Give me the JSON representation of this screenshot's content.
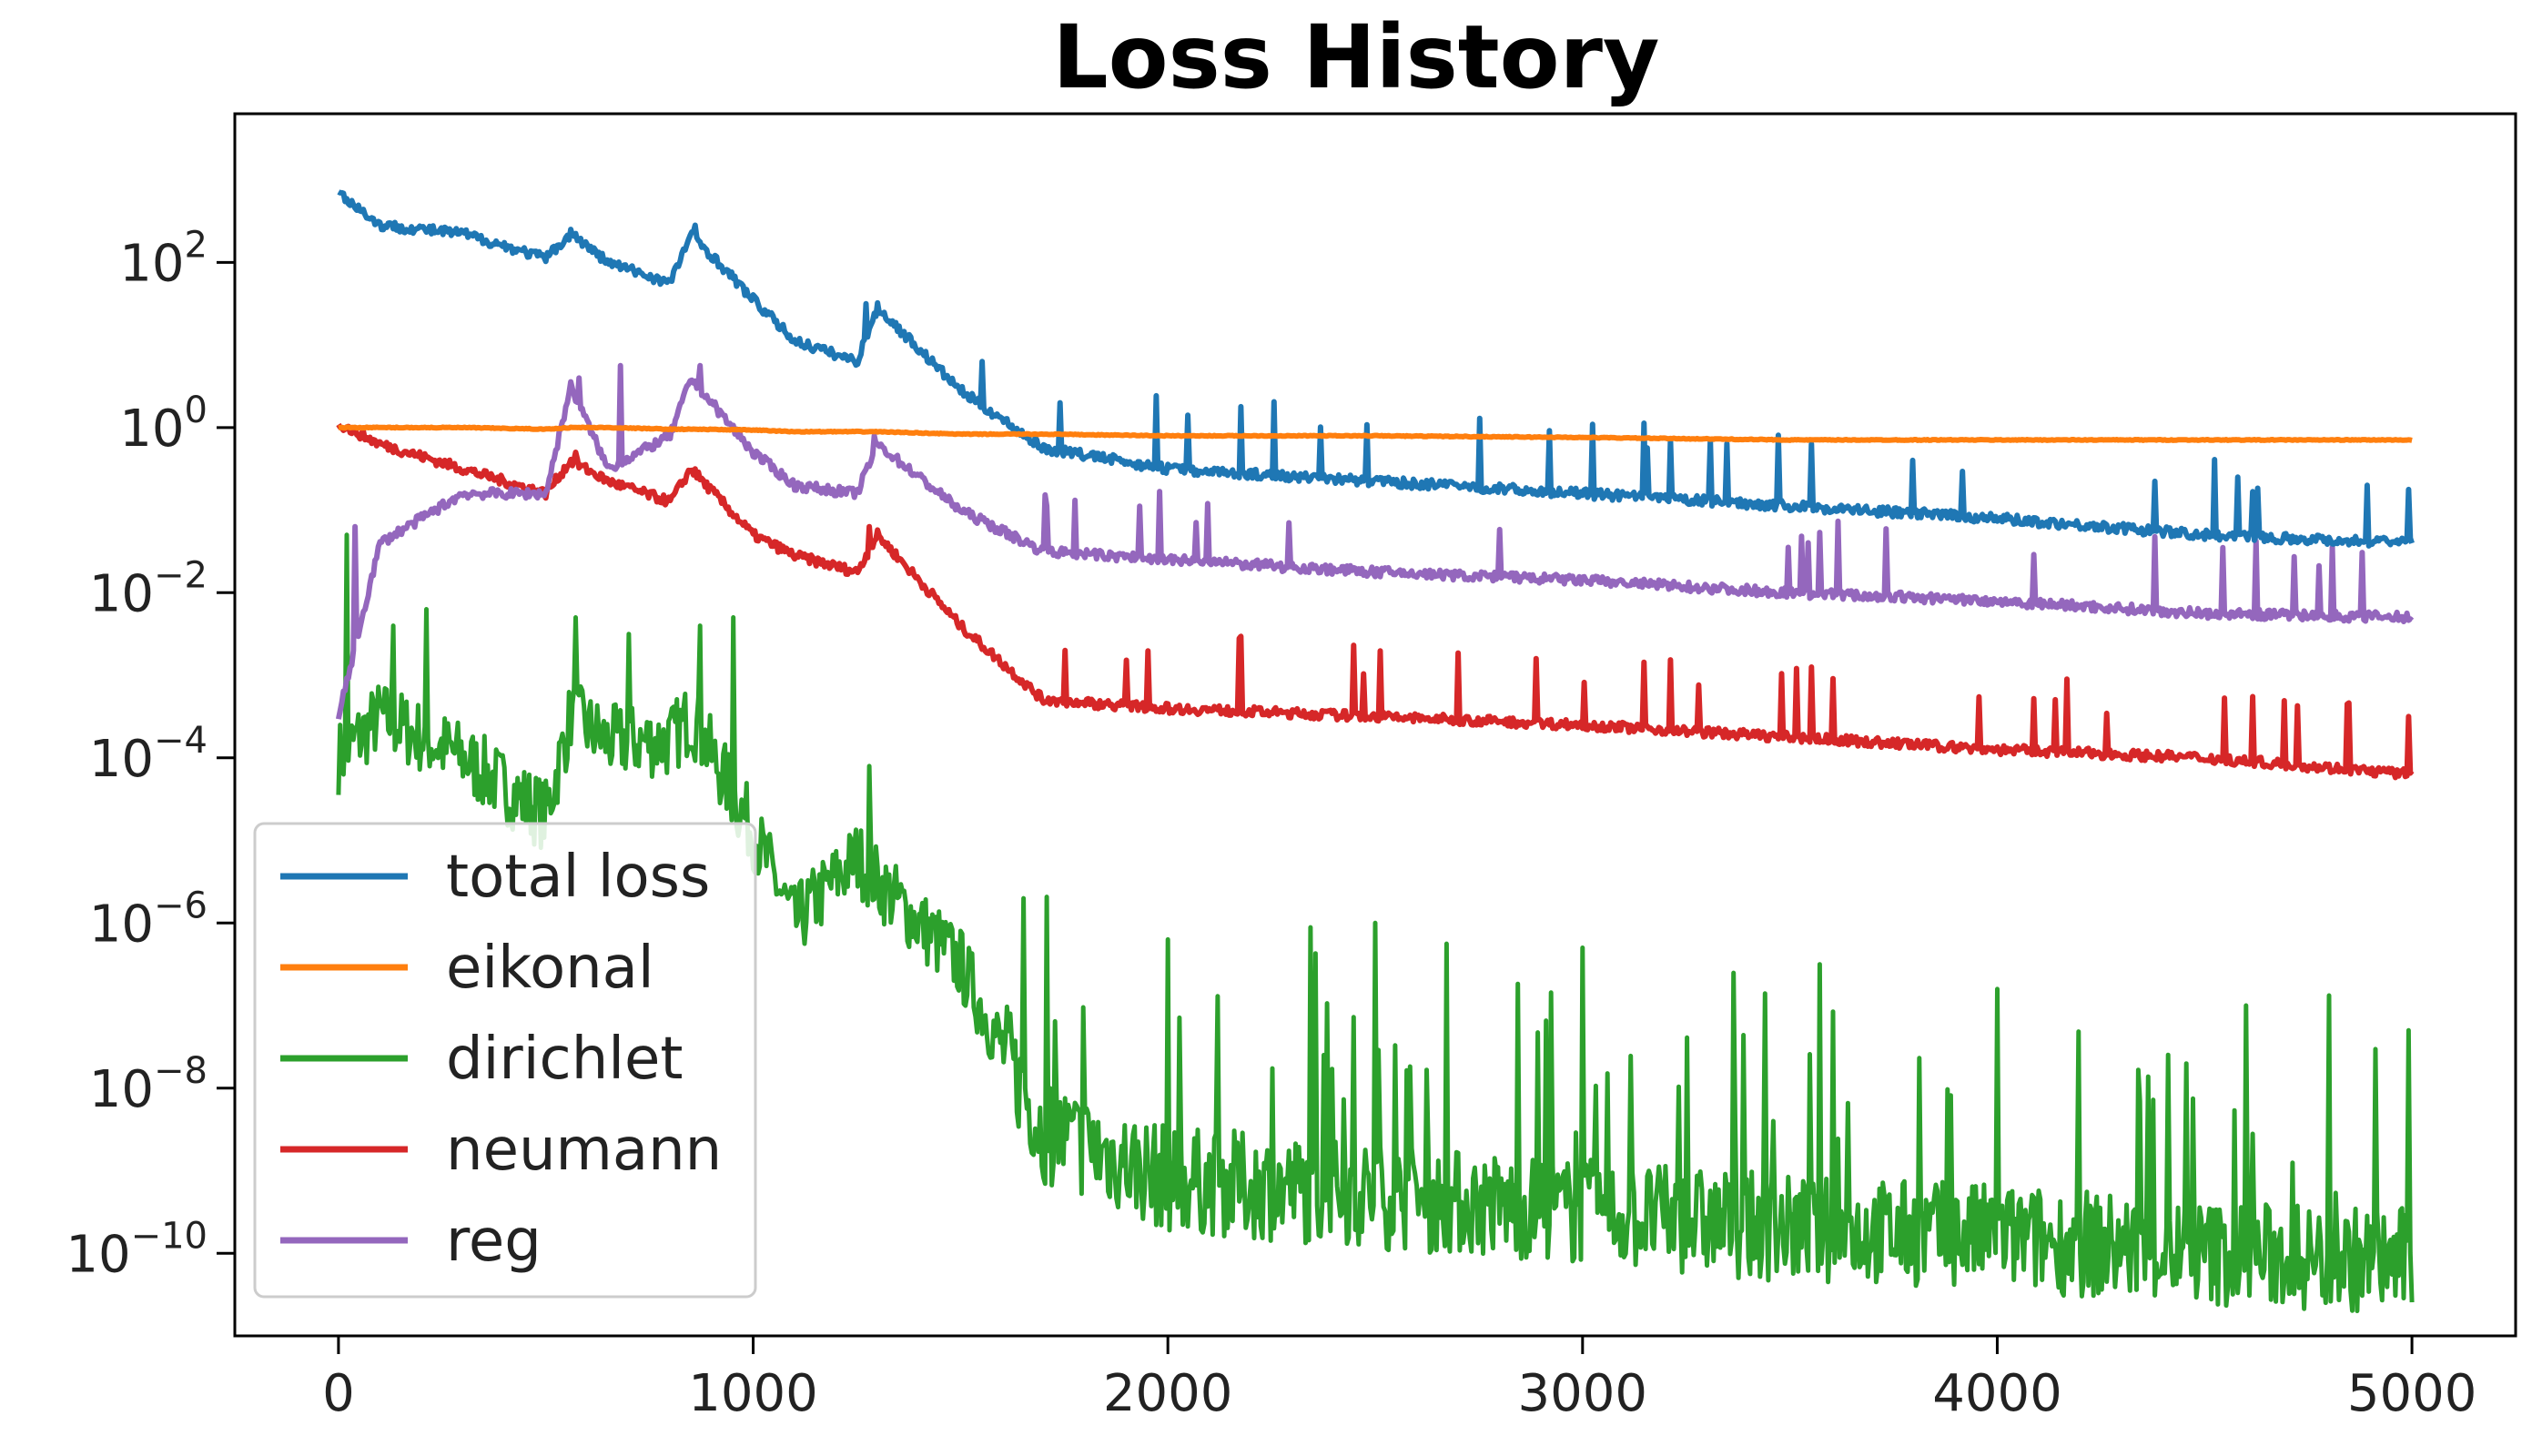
{
  "chart_data": {
    "type": "line",
    "title": "Loss History",
    "xlabel": "",
    "ylabel": "",
    "y_scale": "log",
    "xlim": [
      -250,
      5250
    ],
    "ylim_log10": [
      -11,
      3.8
    ],
    "grid": false,
    "legend_position": "lower-left",
    "x_ticks": [
      0,
      1000,
      2000,
      3000,
      4000,
      5000
    ],
    "x_tick_labels": [
      "0",
      "1000",
      "2000",
      "3000",
      "4000",
      "5000"
    ],
    "y_ticks_log10": [
      2,
      0,
      -2,
      -4,
      -6,
      -8,
      -10
    ],
    "y_tick_labels": [
      {
        "base": "10",
        "exp": "2"
      },
      {
        "base": "10",
        "exp": "0"
      },
      {
        "base": "10",
        "exp": "−2"
      },
      {
        "base": "10",
        "exp": "−4"
      },
      {
        "base": "10",
        "exp": "−6"
      },
      {
        "base": "10",
        "exp": "−8"
      },
      {
        "base": "10",
        "exp": "−10"
      }
    ],
    "x": [
      0,
      100,
      300,
      500,
      560,
      650,
      800,
      850,
      1000,
      1100,
      1250,
      1300,
      1500,
      1700,
      2000,
      2500,
      3000,
      3500,
      4000,
      4500,
      5000
    ],
    "series": [
      {
        "name": "total loss",
        "color": "#1f77b4",
        "log10_values": [
          2.85,
          2.45,
          2.35,
          2.05,
          2.35,
          2.0,
          1.75,
          2.35,
          1.55,
          1.05,
          0.8,
          1.45,
          0.45,
          -0.25,
          -0.5,
          -0.65,
          -0.8,
          -0.95,
          -1.1,
          -1.3,
          -1.4
        ],
        "spikes": [
          [
            570,
            2.35
          ],
          [
            860,
            2.45
          ],
          [
            1270,
            1.5
          ],
          [
            1550,
            0.8
          ],
          [
            1740,
            0.3
          ],
          [
            3210,
            -0.15
          ],
          [
            3550,
            -0.2
          ],
          [
            4580,
            -0.6
          ],
          [
            4890,
            -0.7
          ],
          [
            4990,
            -0.75
          ]
        ]
      },
      {
        "name": "eikonal",
        "color": "#ff7f0e",
        "log10_values": [
          0.0,
          0.0,
          0.0,
          -0.02,
          0.0,
          0.0,
          -0.02,
          -0.02,
          -0.03,
          -0.05,
          -0.05,
          -0.05,
          -0.08,
          -0.08,
          -0.1,
          -0.1,
          -0.12,
          -0.15,
          -0.15,
          -0.15,
          -0.15
        ],
        "spikes": []
      },
      {
        "name": "dirichlet",
        "color": "#2ca02c",
        "log10_values": [
          -4.0,
          -3.5,
          -4.0,
          -4.7,
          -3.5,
          -3.8,
          -3.8,
          -3.5,
          -4.9,
          -6.0,
          -5.2,
          -5.5,
          -6.5,
          -8.5,
          -9.1,
          -9.3,
          -9.5,
          -9.7,
          -9.8,
          -10.0,
          -10.1
        ],
        "spikes": [
          [
            20,
            -1.3
          ],
          [
            130,
            -2.4
          ],
          [
            210,
            -2.2
          ],
          [
            570,
            -2.3
          ],
          [
            700,
            -2.5
          ],
          [
            870,
            -2.4
          ],
          [
            950,
            -2.3
          ],
          [
            1280,
            -4.1
          ],
          [
            1650,
            -5.7
          ],
          [
            2000,
            -6.2
          ],
          [
            2500,
            -6.0
          ],
          [
            3000,
            -6.3
          ],
          [
            3570,
            -6.5
          ],
          [
            4000,
            -6.8
          ],
          [
            4600,
            -7.0
          ],
          [
            4990,
            -7.3
          ]
        ]
      },
      {
        "name": "neumann",
        "color": "#d62728",
        "log10_values": [
          0.05,
          -0.2,
          -0.5,
          -0.8,
          -0.4,
          -0.65,
          -0.9,
          -0.5,
          -1.3,
          -1.55,
          -1.75,
          -1.3,
          -2.4,
          -3.3,
          -3.4,
          -3.5,
          -3.6,
          -3.75,
          -3.9,
          -4.0,
          -4.2
        ],
        "spikes": [
          [
            570,
            -0.3
          ],
          [
            860,
            -0.5
          ],
          [
            1280,
            -1.2
          ],
          [
            1750,
            -2.7
          ],
          [
            3550,
            -2.9
          ],
          [
            4990,
            -3.5
          ]
        ]
      },
      {
        "name": "reg",
        "color": "#9467bd",
        "log10_values": [
          -3.5,
          -1.4,
          -0.8,
          -0.8,
          0.5,
          -0.5,
          -0.1,
          0.6,
          -0.3,
          -0.7,
          -0.8,
          -0.2,
          -1.0,
          -1.5,
          -1.6,
          -1.75,
          -1.85,
          -2.0,
          -2.1,
          -2.25,
          -2.3
        ],
        "spikes": [
          [
            40,
            -1.2
          ],
          [
            580,
            0.6
          ],
          [
            680,
            0.75
          ],
          [
            870,
            0.75
          ],
          [
            1290,
            -0.1
          ]
        ]
      }
    ]
  }
}
